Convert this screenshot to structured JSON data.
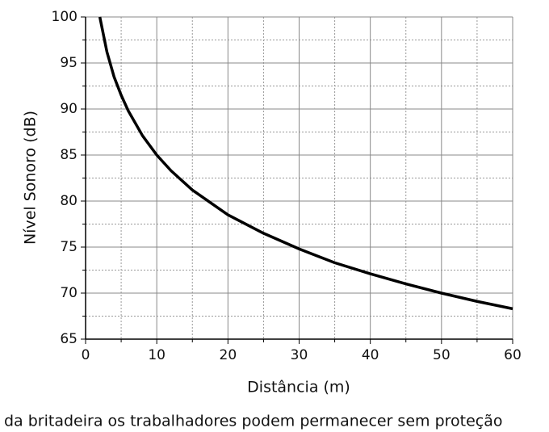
{
  "chart_data": {
    "type": "line",
    "xlabel": "Distância (m)",
    "ylabel": "Nível Sonoro (dB)",
    "caption": "da britadeira os trabalhadores podem permanecer sem proteção",
    "x": [
      2,
      3,
      4,
      5,
      6,
      8,
      10,
      12,
      15,
      20,
      25,
      30,
      35,
      40,
      45,
      50,
      55,
      60
    ],
    "series": [
      {
        "name": "Nível Sonoro",
        "color": "#000000",
        "values": [
          100,
          96.2,
          93.5,
          91.5,
          89.8,
          87.1,
          85,
          83.3,
          81.2,
          78.5,
          76.5,
          74.8,
          73.3,
          72.1,
          71.0,
          70.0,
          69.1,
          68.3
        ]
      }
    ],
    "xlim": [
      0,
      60
    ],
    "xticks": [
      0,
      10,
      20,
      30,
      40,
      50,
      60
    ],
    "xminor": [
      5,
      15,
      25,
      35,
      45,
      55
    ],
    "ylim": [
      65,
      100
    ],
    "yticks": [
      65,
      70,
      75,
      80,
      85,
      90,
      95,
      100
    ],
    "yminor": [
      67.5,
      72.5,
      77.5,
      82.5,
      87.5,
      92.5,
      97.5
    ],
    "grid": true
  }
}
